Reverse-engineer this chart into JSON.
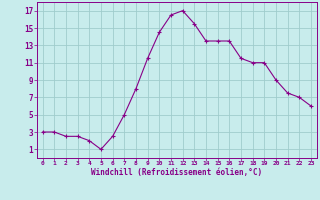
{
  "x": [
    0,
    1,
    2,
    3,
    4,
    5,
    6,
    7,
    8,
    9,
    10,
    11,
    12,
    13,
    14,
    15,
    16,
    17,
    18,
    19,
    20,
    21,
    22,
    23
  ],
  "y": [
    3,
    3,
    2.5,
    2.5,
    2,
    1,
    2.5,
    5,
    8,
    11.5,
    14.5,
    16.5,
    17,
    15.5,
    13.5,
    13.5,
    13.5,
    11.5,
    11,
    11,
    9,
    7.5,
    7,
    6
  ],
  "line_color": "#880088",
  "marker_color": "#880088",
  "background_color": "#c8ecec",
  "grid_color": "#a0cccc",
  "xlabel": "Windchill (Refroidissement éolien,°C)",
  "xlabel_color": "#880088",
  "tick_color": "#880088",
  "ylim": [
    0,
    18
  ],
  "xlim": [
    -0.5,
    23.5
  ],
  "yticks": [
    1,
    3,
    5,
    7,
    9,
    11,
    13,
    15,
    17
  ],
  "xticks": [
    0,
    1,
    2,
    3,
    4,
    5,
    6,
    7,
    8,
    9,
    10,
    11,
    12,
    13,
    14,
    15,
    16,
    17,
    18,
    19,
    20,
    21,
    22,
    23
  ],
  "xtick_labels": [
    "0",
    "1",
    "2",
    "3",
    "4",
    "5",
    "6",
    "7",
    "8",
    "9",
    "10",
    "11",
    "12",
    "13",
    "14",
    "15",
    "16",
    "17",
    "18",
    "19",
    "20",
    "21",
    "22",
    "23"
  ],
  "ytick_labels": [
    "1",
    "3",
    "5",
    "7",
    "9",
    "11",
    "13",
    "15",
    "17"
  ],
  "figsize": [
    3.2,
    2.0
  ],
  "dpi": 100
}
